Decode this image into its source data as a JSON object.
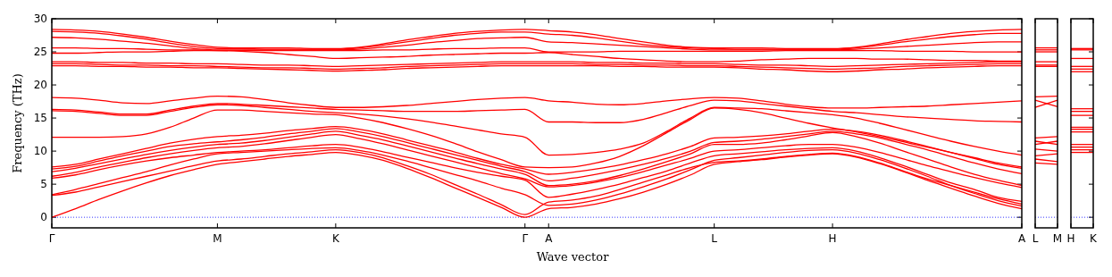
{
  "chart_data": [
    {
      "type": "line",
      "xlabel": "Wave vector",
      "ylabel": "Frequency (THz)",
      "ylim": [
        -1.6,
        30
      ],
      "yticks": [
        0,
        5,
        10,
        15,
        20,
        25,
        30
      ],
      "categories": [
        "Γ",
        null,
        null,
        null,
        null,
        null,
        null,
        "M",
        null,
        null,
        null,
        null,
        "K",
        null,
        null,
        null,
        null,
        null,
        null,
        null,
        "Γ",
        "A",
        null,
        null,
        null,
        null,
        null,
        null,
        "L",
        null,
        null,
        null,
        null,
        "H",
        null,
        null,
        null,
        null,
        null,
        null,
        null,
        "A"
      ],
      "grid": false,
      "line_style": "solid",
      "marker": "none",
      "ref_lines": [
        {
          "axis": "y",
          "value": 0,
          "color": "#0000ff",
          "line_style": "dotted"
        }
      ],
      "series": [
        {
          "color": "#ff0000",
          "values": [
            28.4,
            28.3,
            28.1,
            27.7,
            27.2,
            26.6,
            26.1,
            25.7,
            25.6,
            25.6,
            25.6,
            25.5,
            25.5,
            25.7,
            26.2,
            26.8,
            27.3,
            27.8,
            28.1,
            28.3,
            28.4,
            28.2,
            28.0,
            27.6,
            27.0,
            26.5,
            26.0,
            25.7,
            25.6,
            25.6,
            25.6,
            25.5,
            25.5,
            25.5,
            25.7,
            26.2,
            26.8,
            27.3,
            27.8,
            28.1,
            28.3,
            28.4
          ]
        },
        {
          "color": "#ff0000",
          "values": [
            28.1,
            28.0,
            27.8,
            27.4,
            26.9,
            26.3,
            25.8,
            25.5,
            25.5,
            25.4,
            25.4,
            25.4,
            25.4,
            25.6,
            26.0,
            26.5,
            27.0,
            27.5,
            27.8,
            28.0,
            28.0,
            27.7,
            27.5,
            27.1,
            26.6,
            26.1,
            25.8,
            25.6,
            25.5,
            25.4,
            25.4,
            25.4,
            25.4,
            25.4,
            25.6,
            26.0,
            26.5,
            26.9,
            27.3,
            27.6,
            27.8,
            27.8
          ]
        },
        {
          "color": "#ff0000",
          "values": [
            27.2,
            27.1,
            26.9,
            26.6,
            26.3,
            25.9,
            25.5,
            25.3,
            25.3,
            25.3,
            25.3,
            25.3,
            25.3,
            25.4,
            25.7,
            26.0,
            26.4,
            26.7,
            27.0,
            27.1,
            27.2,
            26.5,
            26.4,
            26.2,
            26.0,
            25.8,
            25.6,
            25.4,
            25.3,
            25.3,
            25.3,
            25.3,
            25.3,
            25.3,
            25.4,
            25.6,
            25.8,
            26.0,
            26.2,
            26.4,
            26.5,
            26.5
          ]
        },
        {
          "color": "#ff0000",
          "values": [
            25.6,
            25.6,
            25.5,
            25.5,
            25.4,
            25.3,
            25.3,
            25.2,
            25.2,
            25.2,
            25.2,
            25.2,
            25.2,
            25.2,
            25.3,
            25.3,
            25.4,
            25.5,
            25.5,
            25.6,
            25.6,
            25.0,
            25.0,
            25.0,
            25.1,
            25.1,
            25.1,
            25.1,
            25.1,
            25.1,
            25.1,
            25.2,
            25.2,
            25.2,
            25.2,
            25.2,
            25.1,
            25.1,
            25.1,
            25.0,
            25.0,
            25.0
          ]
        },
        {
          "color": "#ff0000",
          "values": [
            24.8,
            24.8,
            24.9,
            25.0,
            25.0,
            25.1,
            25.2,
            25.2,
            25.1,
            24.9,
            24.6,
            24.3,
            24.0,
            24.1,
            24.2,
            24.3,
            24.5,
            24.6,
            24.7,
            24.8,
            24.8,
            24.9,
            24.6,
            24.3,
            24.0,
            23.8,
            23.6,
            23.5,
            23.5,
            23.6,
            23.8,
            23.9,
            24.0,
            24.0,
            24.0,
            23.9,
            23.9,
            23.8,
            23.7,
            23.7,
            23.6,
            23.6
          ]
        },
        {
          "color": "#ff0000",
          "values": [
            23.5,
            23.5,
            23.4,
            23.4,
            23.3,
            23.3,
            23.2,
            23.2,
            23.1,
            23.0,
            23.0,
            22.9,
            22.8,
            22.9,
            23.0,
            23.1,
            23.2,
            23.3,
            23.4,
            23.5,
            23.5,
            23.5,
            23.5,
            23.4,
            23.4,
            23.3,
            23.3,
            23.2,
            23.2,
            23.1,
            23.0,
            23.0,
            22.9,
            22.8,
            22.9,
            23.0,
            23.1,
            23.2,
            23.3,
            23.4,
            23.5,
            23.5
          ]
        },
        {
          "color": "#ff0000",
          "values": [
            23.2,
            23.2,
            23.1,
            23.0,
            23.0,
            22.9,
            22.9,
            22.8,
            22.7,
            22.6,
            22.6,
            22.5,
            22.4,
            22.5,
            22.6,
            22.8,
            22.9,
            23.0,
            23.1,
            23.2,
            23.2,
            23.2,
            23.2,
            23.1,
            23.1,
            23.0,
            23.0,
            22.9,
            22.9,
            22.8,
            22.7,
            22.6,
            22.5,
            22.4,
            22.5,
            22.6,
            22.8,
            22.9,
            23.0,
            23.1,
            23.2,
            23.2
          ]
        },
        {
          "color": "#ff0000",
          "values": [
            22.9,
            22.9,
            22.8,
            22.8,
            22.7,
            22.7,
            22.6,
            22.6,
            22.5,
            22.4,
            22.3,
            22.2,
            22.1,
            22.2,
            22.3,
            22.5,
            22.6,
            22.7,
            22.8,
            22.9,
            22.9,
            22.9,
            22.9,
            22.9,
            22.8,
            22.8,
            22.7,
            22.7,
            22.7,
            22.6,
            22.4,
            22.3,
            22.1,
            22.0,
            22.1,
            22.3,
            22.4,
            22.6,
            22.7,
            22.8,
            22.9,
            22.9
          ]
        },
        {
          "color": "#ff0000",
          "values": [
            18.1,
            18.0,
            17.7,
            17.3,
            17.2,
            17.6,
            18.0,
            18.3,
            18.2,
            17.8,
            17.3,
            16.9,
            16.6,
            16.6,
            16.7,
            16.9,
            17.2,
            17.5,
            17.8,
            18.0,
            18.1,
            17.6,
            17.4,
            17.1,
            17.0,
            17.2,
            17.6,
            17.9,
            18.1,
            18.0,
            17.6,
            17.1,
            16.7,
            16.5,
            16.5,
            16.6,
            16.7,
            16.8,
            17.0,
            17.2,
            17.4,
            17.6
          ]
        },
        {
          "color": "#ff0000",
          "values": [
            16.3,
            16.2,
            15.9,
            15.6,
            15.6,
            16.2,
            16.8,
            17.2,
            17.1,
            16.9,
            16.7,
            16.5,
            16.3,
            16.2,
            16.1,
            16.0,
            16.0,
            16.0,
            16.1,
            16.2,
            16.3,
            14.4,
            14.4,
            14.3,
            14.3,
            14.8,
            15.8,
            16.9,
            17.7,
            17.6,
            17.2,
            16.8,
            16.4,
            16.0,
            15.8,
            15.5,
            15.2,
            15.0,
            14.8,
            14.6,
            14.5,
            14.4
          ]
        },
        {
          "color": "#ff0000",
          "values": [
            16.1,
            16.0,
            15.7,
            15.4,
            15.4,
            16.0,
            16.6,
            17.0,
            16.9,
            16.6,
            16.3,
            16.0,
            15.8,
            15.6,
            15.3,
            14.9,
            14.4,
            13.8,
            13.2,
            12.6,
            12.1,
            9.4,
            9.5,
            9.8,
            10.3,
            11.2,
            13.0,
            15.0,
            16.6,
            16.5,
            16.4,
            16.1,
            15.8,
            15.5,
            15.0,
            14.2,
            13.3,
            12.4,
            11.5,
            10.7,
            10.0,
            9.4
          ]
        },
        {
          "color": "#ff0000",
          "values": [
            12.1,
            12.1,
            12.1,
            12.2,
            12.6,
            13.6,
            15.0,
            16.2,
            16.2,
            16.0,
            15.8,
            15.6,
            15.5,
            15.0,
            14.3,
            13.4,
            12.4,
            11.2,
            9.9,
            8.7,
            7.6,
            7.5,
            7.6,
            8.2,
            9.2,
            10.8,
            12.8,
            14.8,
            16.5,
            16.3,
            15.8,
            15.0,
            14.2,
            13.5,
            12.9,
            12.2,
            11.4,
            10.6,
            9.8,
            9.0,
            8.2,
            7.6
          ]
        },
        {
          "color": "#ff0000",
          "values": [
            7.6,
            8.0,
            8.8,
            9.6,
            10.4,
            11.2,
            11.8,
            12.2,
            12.4,
            12.7,
            13.1,
            13.4,
            13.7,
            13.3,
            12.6,
            11.7,
            10.8,
            9.9,
            8.9,
            8.0,
            7.3,
            6.5,
            6.8,
            7.3,
            7.9,
            8.7,
            9.6,
            10.7,
            12.0,
            12.1,
            12.3,
            12.6,
            13.0,
            13.3,
            13.0,
            12.4,
            11.6,
            10.7,
            9.8,
            8.9,
            8.0,
            7.4
          ]
        },
        {
          "color": "#ff0000",
          "values": [
            7.3,
            7.7,
            8.5,
            9.3,
            10.0,
            10.7,
            11.1,
            11.4,
            11.7,
            12.1,
            12.6,
            13.0,
            13.4,
            12.9,
            12.2,
            11.3,
            10.4,
            9.5,
            8.6,
            7.7,
            6.9,
            5.5,
            5.9,
            6.5,
            7.2,
            8.0,
            8.9,
            10.0,
            11.3,
            11.5,
            11.8,
            12.2,
            12.6,
            13.0,
            12.6,
            12.0,
            11.1,
            10.2,
            9.2,
            8.2,
            7.3,
            6.6
          ]
        },
        {
          "color": "#ff0000",
          "values": [
            6.9,
            7.4,
            8.1,
            8.8,
            9.5,
            10.1,
            10.6,
            11.0,
            11.2,
            11.6,
            12.1,
            12.6,
            13.0,
            12.4,
            11.7,
            10.8,
            9.9,
            9.0,
            8.1,
            7.3,
            6.5,
            4.8,
            5.0,
            5.5,
            6.3,
            7.3,
            8.4,
            9.6,
            11.0,
            11.0,
            11.2,
            11.7,
            12.3,
            12.8,
            12.2,
            11.2,
            10.0,
            8.8,
            7.6,
            6.5,
            5.6,
            4.8
          ]
        },
        {
          "color": "#ff0000",
          "values": [
            6.2,
            6.8,
            7.6,
            8.3,
            9.0,
            9.6,
            10.1,
            10.5,
            10.7,
            11.1,
            11.6,
            12.1,
            12.5,
            11.9,
            11.1,
            10.2,
            9.3,
            8.4,
            7.5,
            6.6,
            5.8,
            4.6,
            4.8,
            5.3,
            6.0,
            6.9,
            7.9,
            8.9,
            10.0,
            10.2,
            10.5,
            10.8,
            11.0,
            11.0,
            10.6,
            9.8,
            8.8,
            7.8,
            6.9,
            6.0,
            5.2,
            4.5
          ]
        },
        {
          "color": "#ff0000",
          "values": [
            5.9,
            6.4,
            7.2,
            7.9,
            8.5,
            9.0,
            9.4,
            9.8,
            10.0,
            10.2,
            10.5,
            10.8,
            11.0,
            10.6,
            9.9,
            9.1,
            8.3,
            7.5,
            6.8,
            6.2,
            5.6,
            3.0,
            3.5,
            4.2,
            5.0,
            6.0,
            7.0,
            8.2,
            9.3,
            9.6,
            9.9,
            10.2,
            10.4,
            10.5,
            10.0,
            9.0,
            7.8,
            6.5,
            5.2,
            4.2,
            3.0,
            2.4
          ]
        },
        {
          "color": "#ff0000",
          "values": [
            3.4,
            4.2,
            5.1,
            6.0,
            6.9,
            7.9,
            8.8,
            9.6,
            9.8,
            10.0,
            10.2,
            10.4,
            10.5,
            10.1,
            9.4,
            8.5,
            7.5,
            6.5,
            5.5,
            4.4,
            3.4,
            1.8,
            2.0,
            2.6,
            3.5,
            4.6,
            5.8,
            7.2,
            8.6,
            9.0,
            9.4,
            9.8,
            10.1,
            10.2,
            9.7,
            8.7,
            7.5,
            6.2,
            4.8,
            3.6,
            2.5,
            1.7
          ]
        },
        {
          "color": "#ff0000",
          "values": [
            3.3,
            3.8,
            4.6,
            5.4,
            6.2,
            7.0,
            7.8,
            8.5,
            8.8,
            9.2,
            9.6,
            9.9,
            10.2,
            9.8,
            9.0,
            7.8,
            6.5,
            5.0,
            3.5,
            1.9,
            0.4,
            2.3,
            2.6,
            3.2,
            4.2,
            5.3,
            6.4,
            7.5,
            8.3,
            8.5,
            8.8,
            9.2,
            9.5,
            9.7,
            9.2,
            8.2,
            7.0,
            5.8,
            4.8,
            3.8,
            2.8,
            2.0
          ]
        },
        {
          "color": "#ff0000",
          "values": [
            0.0,
            1.3,
            2.7,
            4.0,
            5.2,
            6.3,
            7.2,
            8.0,
            8.4,
            8.8,
            9.2,
            9.5,
            9.8,
            9.4,
            8.6,
            7.4,
            6.0,
            4.5,
            3.0,
            1.5,
            0.0,
            1.3,
            1.5,
            2.0,
            2.8,
            3.8,
            5.0,
            6.4,
            8.0,
            8.4,
            8.7,
            9.1,
            9.4,
            9.6,
            9.1,
            8.1,
            6.9,
            5.6,
            4.4,
            3.2,
            2.1,
            1.3
          ]
        }
      ]
    },
    {
      "type": "line",
      "ylim": [
        -1.6,
        30
      ],
      "yticks": [
        0,
        5,
        10,
        15,
        20,
        25,
        30
      ],
      "tick_labels": "x",
      "categories": [
        "L",
        "M"
      ],
      "grid": false,
      "line_style": "solid",
      "marker": "none",
      "ref_lines": [
        {
          "axis": "y",
          "value": 0,
          "color": "#0000ff",
          "line_style": "dotted"
        }
      ],
      "series": [
        {
          "color": "#ff0000",
          "values": [
            25.6,
            25.6
          ]
        },
        {
          "color": "#ff0000",
          "values": [
            25.3,
            25.3
          ]
        },
        {
          "color": "#ff0000",
          "values": [
            25.0,
            25.0
          ]
        },
        {
          "color": "#ff0000",
          "values": [
            23.5,
            23.5
          ]
        },
        {
          "color": "#ff0000",
          "values": [
            23.0,
            23.0
          ]
        },
        {
          "color": "#ff0000",
          "values": [
            22.8,
            22.8
          ]
        },
        {
          "color": "#ff0000",
          "values": [
            18.2,
            18.3
          ]
        },
        {
          "color": "#ff0000",
          "values": [
            17.7,
            16.7
          ]
        },
        {
          "color": "#ff0000",
          "values": [
            16.6,
            17.7
          ]
        },
        {
          "color": "#ff0000",
          "values": [
            12.0,
            12.2
          ]
        },
        {
          "color": "#ff0000",
          "values": [
            11.5,
            11.0
          ]
        },
        {
          "color": "#ff0000",
          "values": [
            11.0,
            11.5
          ]
        },
        {
          "color": "#ff0000",
          "values": [
            10.3,
            10.0
          ]
        },
        {
          "color": "#ff0000",
          "values": [
            9.3,
            9.6
          ]
        },
        {
          "color": "#ff0000",
          "values": [
            8.8,
            8.4
          ]
        },
        {
          "color": "#ff0000",
          "values": [
            8.2,
            8.0
          ]
        }
      ]
    },
    {
      "type": "line",
      "ylim": [
        -1.6,
        30
      ],
      "yticks": [
        0,
        5,
        10,
        15,
        20,
        25,
        30
      ],
      "tick_labels": "x",
      "categories": [
        "H",
        "K"
      ],
      "grid": false,
      "line_style": "solid",
      "marker": "none",
      "ref_lines": [
        {
          "axis": "y",
          "value": 0,
          "color": "#0000ff",
          "line_style": "dotted"
        }
      ],
      "series": [
        {
          "color": "#ff0000",
          "values": [
            25.5,
            25.5
          ]
        },
        {
          "color": "#ff0000",
          "values": [
            25.3,
            25.3
          ]
        },
        {
          "color": "#ff0000",
          "values": [
            24.0,
            24.0
          ]
        },
        {
          "color": "#ff0000",
          "values": [
            22.8,
            22.8
          ]
        },
        {
          "color": "#ff0000",
          "values": [
            22.4,
            22.4
          ]
        },
        {
          "color": "#ff0000",
          "values": [
            22.0,
            22.0
          ]
        },
        {
          "color": "#ff0000",
          "values": [
            16.4,
            16.4
          ]
        },
        {
          "color": "#ff0000",
          "values": [
            16.0,
            16.0
          ]
        },
        {
          "color": "#ff0000",
          "values": [
            15.4,
            15.4
          ]
        },
        {
          "color": "#ff0000",
          "values": [
            13.6,
            13.6
          ]
        },
        {
          "color": "#ff0000",
          "values": [
            13.3,
            13.3
          ]
        },
        {
          "color": "#ff0000",
          "values": [
            12.9,
            12.9
          ]
        },
        {
          "color": "#ff0000",
          "values": [
            11.0,
            11.0
          ]
        },
        {
          "color": "#ff0000",
          "values": [
            10.6,
            10.6
          ]
        },
        {
          "color": "#ff0000",
          "values": [
            10.2,
            10.2
          ]
        },
        {
          "color": "#ff0000",
          "values": [
            9.8,
            9.8
          ]
        }
      ]
    }
  ]
}
